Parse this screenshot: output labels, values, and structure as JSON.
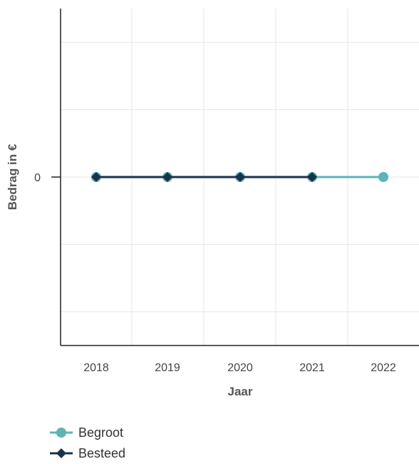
{
  "chart_data": {
    "type": "line",
    "title": "",
    "xlabel": "Jaar",
    "ylabel": "Bedrag in €",
    "categories": [
      "2018",
      "2019",
      "2020",
      "2021",
      "2022"
    ],
    "y_ticks": [
      "0"
    ],
    "ylim": [
      -2.5,
      2.5
    ],
    "grid": true,
    "legend_position": "bottom-left",
    "series": [
      {
        "name": "Begroot",
        "color": "#5fb3b3",
        "marker": "circle",
        "values": [
          0,
          0,
          0,
          0,
          0
        ]
      },
      {
        "name": "Besteed",
        "color": "#1a3349",
        "marker": "diamond",
        "values": [
          0,
          0,
          0,
          0,
          null
        ]
      }
    ]
  }
}
